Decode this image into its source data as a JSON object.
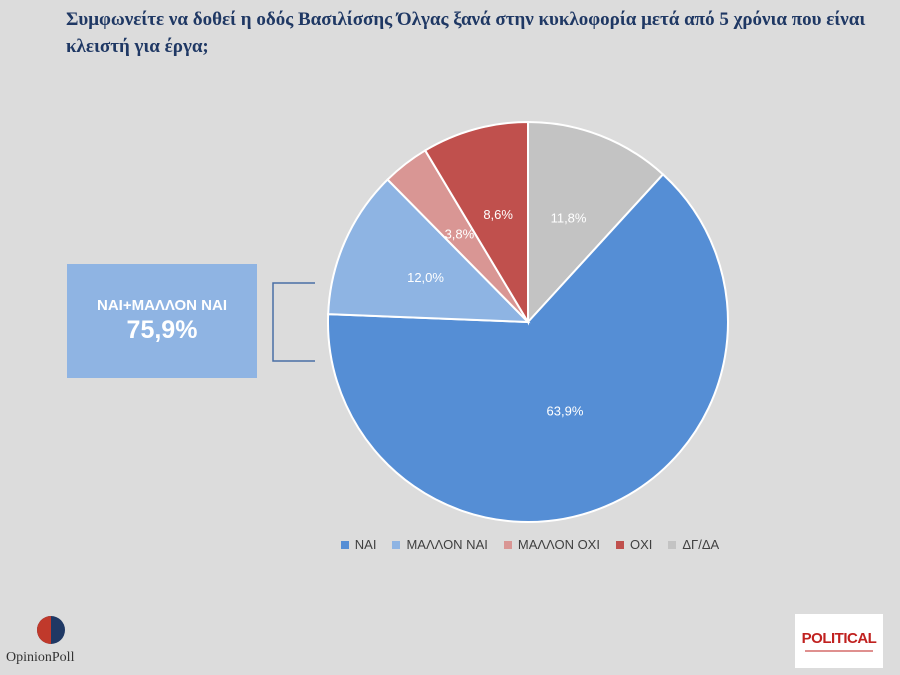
{
  "title": "Συμφωνείτε να δοθεί η οδός Βασιλίσσης Όλγας ξανά στην κυκλοφορία μετά από 5 χρόνια που είναι κλειστή για έργα;",
  "callout": {
    "label": "ΝΑΙ+ΜΑΛΛΟΝ ΝΑΙ",
    "value": "75,9%"
  },
  "logos": {
    "left": "OpinionPoll",
    "right": "POLITICAL"
  },
  "chart_data": {
    "type": "pie",
    "title": "Συμφωνείτε να δοθεί η οδός Βασιλίσσης Όλγας ξανά στην κυκλοφορία μετά από 5 χρόνια που είναι κλειστή για έργα;",
    "legend_position": "bottom",
    "start": "top, clockwise",
    "slices": [
      {
        "label": "ΔΓ/ΔΑ",
        "value": 11.8,
        "display": "11,8%",
        "color": "#c3c3c3"
      },
      {
        "label": "ΝΑΙ",
        "value": 63.9,
        "display": "63,9%",
        "color": "#558ed5"
      },
      {
        "label": "ΜΑΛΛΟΝ ΝΑΙ",
        "value": 12.0,
        "display": "12,0%",
        "color": "#8eb4e3"
      },
      {
        "label": "ΜΑΛΛΟΝ ΟΧΙ",
        "value": 3.8,
        "display": "3,8%",
        "color": "#d99694"
      },
      {
        "label": "ΟΧΙ",
        "value": 8.6,
        "display": "8,6%",
        "color": "#c0504d"
      }
    ],
    "legend_order": [
      "ΝΑΙ",
      "ΜΑΛΛΟΝ ΝΑΙ",
      "ΜΑΛΛΟΝ ΟΧΙ",
      "ΟΧΙ",
      "ΔΓ/ΔΑ"
    ]
  }
}
